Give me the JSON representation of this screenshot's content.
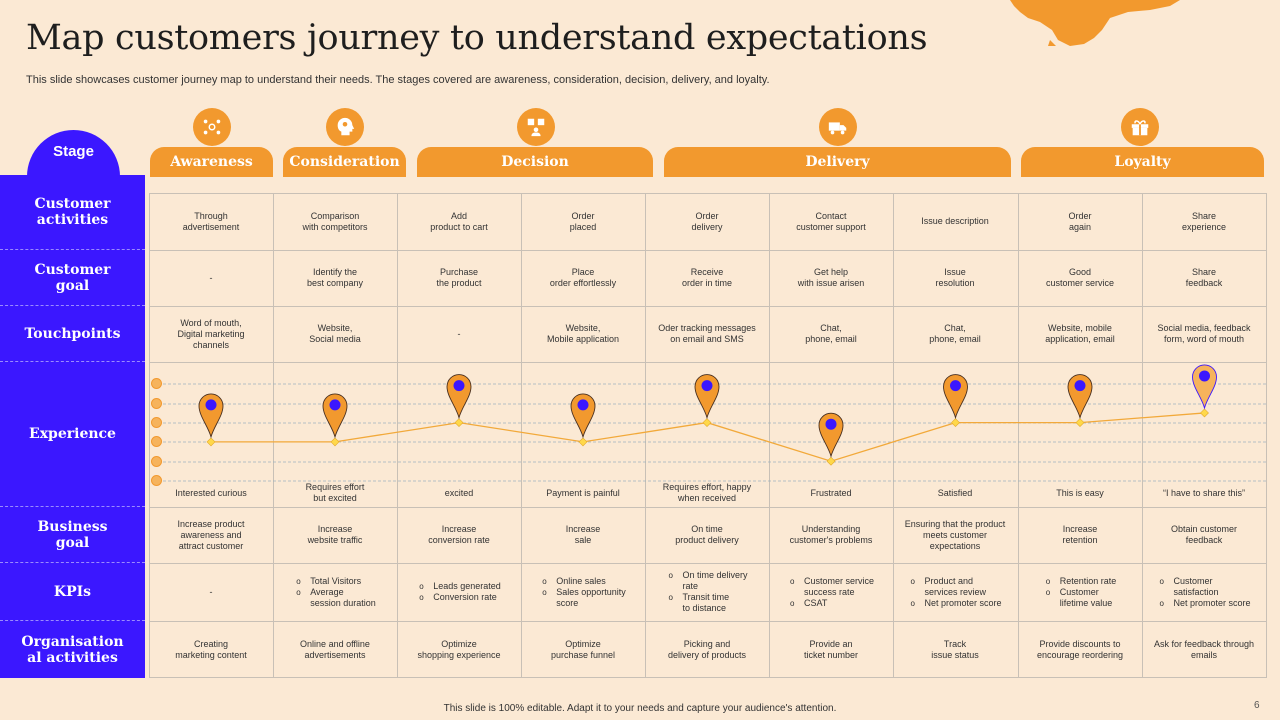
{
  "title": "Map customers journey to understand expectations",
  "subtitle": "This slide showcases customer journey map to understand their needs. The stages covered are awareness, consideration, decision, delivery, and loyalty.",
  "stage_label": "Stage",
  "stages": [
    {
      "name": "Awareness",
      "icon": "people-network-icon"
    },
    {
      "name": "Consideration",
      "icon": "head-ideas-icon"
    },
    {
      "name": "Decision",
      "icon": "decision-icon"
    },
    {
      "name": "Delivery",
      "icon": "delivery-truck-icon"
    },
    {
      "name": "Loyalty",
      "icon": "gift-icon"
    }
  ],
  "row_labels": [
    "Customer\nactivities",
    "Customer\ngoal",
    "Touchpoints",
    "Experience",
    "Business\ngoal",
    "KPIs",
    "Organisation\nal activities"
  ],
  "customer_activities": [
    "Through\nadvertisement",
    "Comparison\nwith competitors",
    "Add\nproduct to cart",
    "Order\nplaced",
    "Order\ndelivery",
    "Contact\ncustomer support",
    "Issue description",
    "Order\nagain",
    "Share\nexperience"
  ],
  "customer_goal": [
    "-",
    "Identify the\nbest company",
    "Purchase\nthe product",
    "Place\norder effortlessly",
    "Receive\norder in time",
    "Get help\nwith issue arisen",
    "Issue\nresolution",
    "Good\ncustomer service",
    "Share\nfeedback"
  ],
  "touchpoints": [
    "Word of mouth,\nDigital marketing\nchannels",
    "Website,\nSocial media",
    "-",
    "Website,\nMobile application",
    "Oder tracking messages\non email and SMS",
    "Chat,\nphone, email",
    "Chat,\nphone, email",
    "Website, mobile\napplication, email",
    "Social media, feedback\nform, word of mouth"
  ],
  "experience": {
    "levels": [
      3,
      3,
      2,
      3,
      2,
      4,
      2,
      2,
      1.5
    ],
    "labels": [
      "Interested curious",
      "Requires effort\nbut excited",
      "excited",
      "Payment is painful",
      "Requires effort, happy\nwhen received",
      "Frustrated",
      "Satisfied",
      "This is easy",
      "“I have to share this”"
    ],
    "scale_icons": [
      "emoji-icon",
      "emoji-icon",
      "emoji-icon",
      "emoji-icon",
      "emoji-icon",
      "emoji-icon"
    ]
  },
  "business_goal": [
    "Increase product\nawareness and\nattract customer",
    "Increase\nwebsite traffic",
    "Increase\nconversion rate",
    "Increase\nsale",
    "On time\nproduct delivery",
    "Understanding\ncustomer's problems",
    "Ensuring that the product\nmeets customer\nexpectations",
    "Increase\nretention",
    "Obtain customer\nfeedback"
  ],
  "kpis": [
    [
      "-"
    ],
    [
      "Total Visitors",
      "Average\nsession duration"
    ],
    [
      "Leads generated",
      "Conversion rate"
    ],
    [
      "Online sales",
      "Sales opportunity\nscore"
    ],
    [
      "On time delivery\nrate",
      "Transit time\nto distance"
    ],
    [
      "Customer service\nsuccess rate",
      "CSAT"
    ],
    [
      "Product and\nservices review",
      "Net promoter score"
    ],
    [
      "Retention rate",
      "Customer\nlifetime value"
    ],
    [
      "Customer\nsatisfaction",
      "Net promoter score"
    ]
  ],
  "organisational_activities": [
    "Creating\nmarketing content",
    "Online and offline\nadvertisements",
    "Optimize\nshopping experience",
    "Optimize\npurchase funnel",
    "Picking and\ndelivery of products",
    "Provide an\nticket number",
    "Track\nissue status",
    "Provide discounts to\nencourage reordering",
    "Ask for feedback through\nemails"
  ],
  "footer": "This slide is 100% editable. Adapt it to your needs and capture your audience's attention.",
  "page_number": "6",
  "colors": {
    "accent": "#f2992e",
    "primary": "#3b17ff",
    "background": "#fbe9d4",
    "pin_center": "#3b17ff",
    "line": "#f2a93a"
  }
}
